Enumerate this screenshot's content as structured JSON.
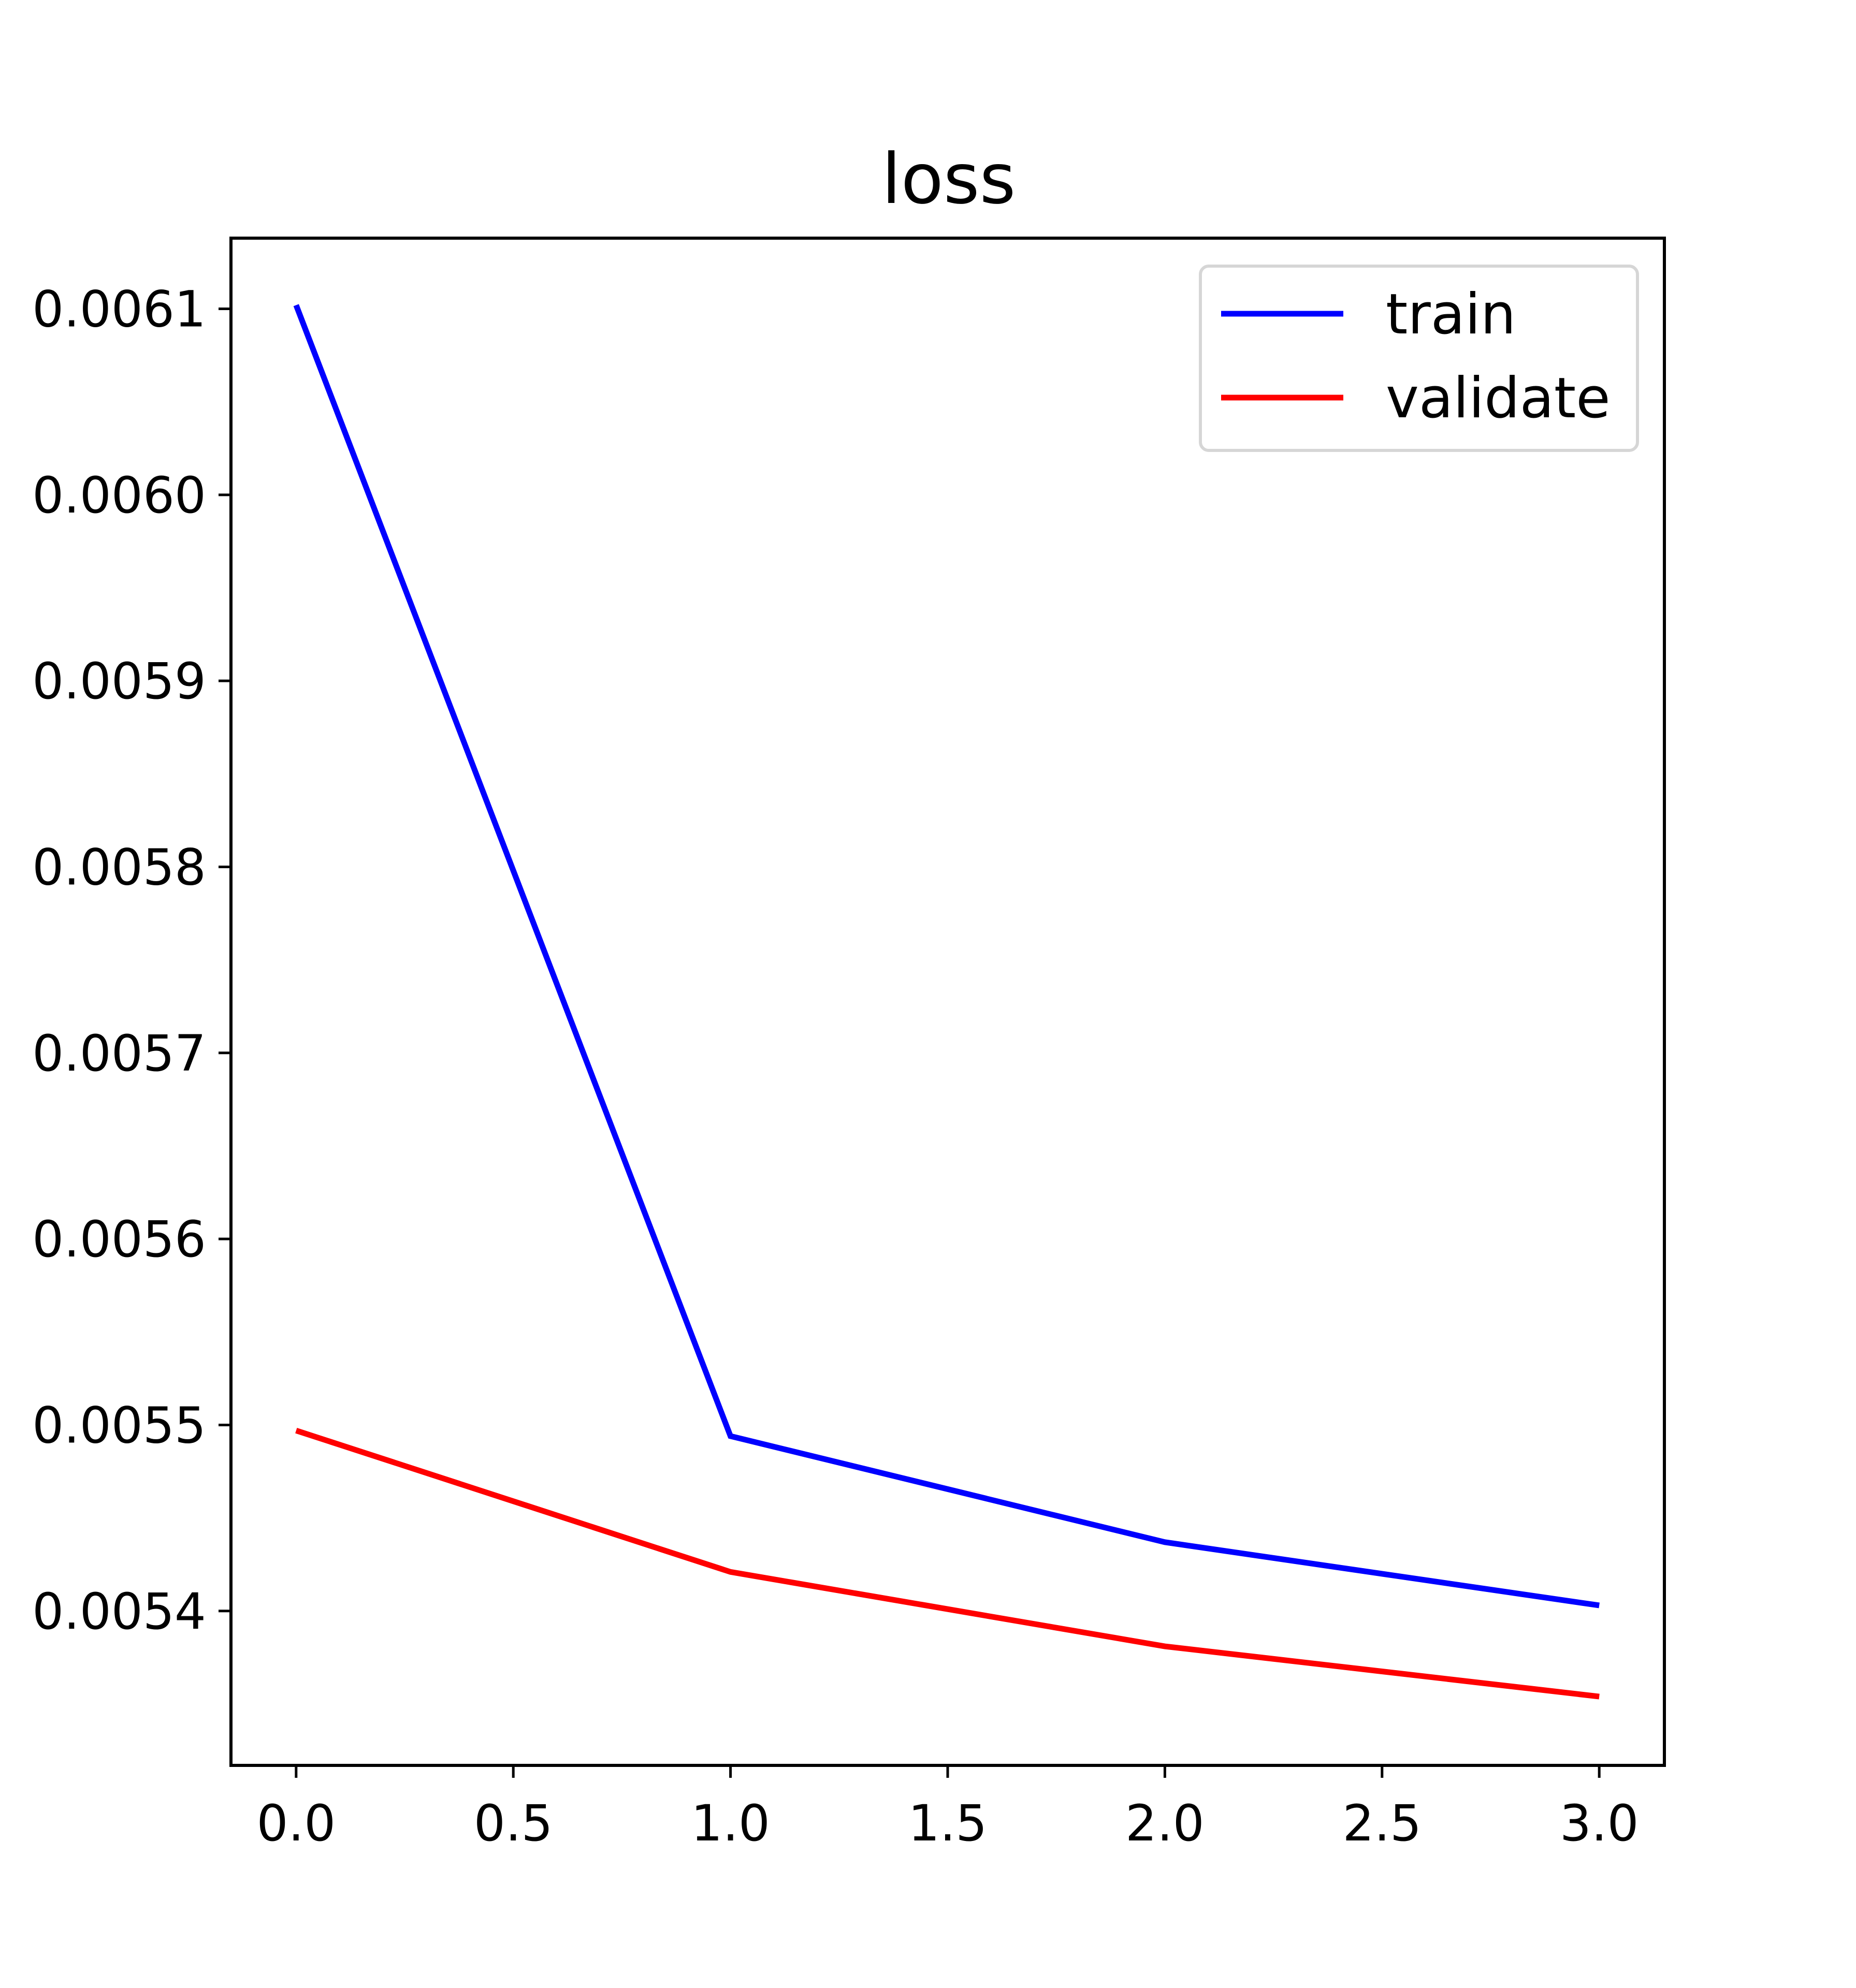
{
  "chart_data": {
    "type": "line",
    "title": "loss",
    "xlabel": "",
    "ylabel": "",
    "x": [
      0,
      1,
      2,
      3
    ],
    "series": [
      {
        "name": "train",
        "color": "#0000ff",
        "values": [
          0.006102,
          0.005494,
          0.005437,
          0.005403
        ]
      },
      {
        "name": "validate",
        "color": "#ff0000",
        "values": [
          0.005497,
          0.005421,
          0.005381,
          0.005354
        ]
      }
    ],
    "xlim": [
      -0.15,
      3.15
    ],
    "ylim": [
      0.005317,
      0.006138
    ],
    "xticks": [
      0.0,
      0.5,
      1.0,
      1.5,
      2.0,
      2.5,
      3.0
    ],
    "xtick_labels": [
      "0.0",
      "0.5",
      "1.0",
      "1.5",
      "2.0",
      "2.5",
      "3.0"
    ],
    "yticks": [
      0.0054,
      0.0055,
      0.0056,
      0.0057,
      0.0058,
      0.0059,
      0.006,
      0.0061
    ],
    "ytick_labels": [
      "0.0054",
      "0.0055",
      "0.0056",
      "0.0057",
      "0.0058",
      "0.0059",
      "0.0060",
      "0.0061"
    ],
    "grid": false,
    "legend_position": "top-right"
  }
}
